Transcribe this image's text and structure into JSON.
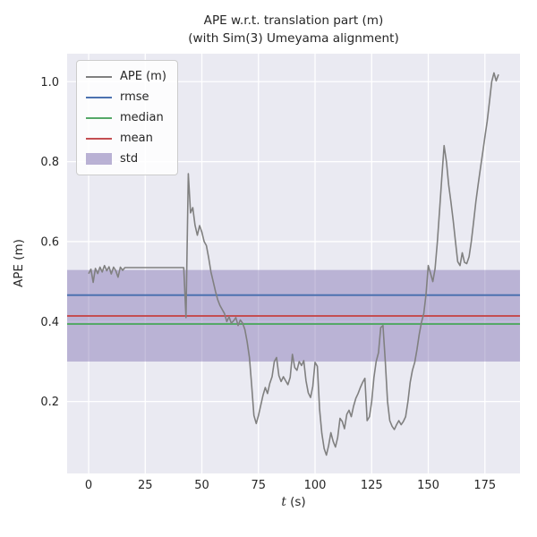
{
  "chart_data": {
    "type": "line",
    "title": "APE w.r.t. translation part (m)",
    "subtitle": "(with Sim(3) Umeyama alignment)",
    "xlabel": "t (s)",
    "ylabel": "APE (m)",
    "xlim": [
      -9.5,
      190.5
    ],
    "ylim": [
      0.02,
      1.07
    ],
    "xticks": [
      0,
      25,
      50,
      75,
      100,
      125,
      150,
      175
    ],
    "yticks": [
      0.2,
      0.4,
      0.6,
      0.8,
      1.0
    ],
    "grid": true,
    "plot_background": "#eaeaf2",
    "gridline_color": "#ffffff",
    "legend_position": "upper left",
    "series": [
      {
        "name": "APE (m)",
        "color": "#808080",
        "points": [
          [
            0,
            0.52
          ],
          [
            1,
            0.531
          ],
          [
            2,
            0.498
          ],
          [
            3,
            0.533
          ],
          [
            4,
            0.52
          ],
          [
            5,
            0.536
          ],
          [
            6,
            0.524
          ],
          [
            7,
            0.54
          ],
          [
            8,
            0.527
          ],
          [
            9,
            0.537
          ],
          [
            10,
            0.519
          ],
          [
            11,
            0.536
          ],
          [
            12,
            0.527
          ],
          [
            13,
            0.511
          ],
          [
            14,
            0.536
          ],
          [
            15,
            0.528
          ],
          [
            16,
            0.535
          ],
          [
            17,
            0.535
          ],
          [
            20,
            0.535
          ],
          [
            25,
            0.535
          ],
          [
            30,
            0.535
          ],
          [
            35,
            0.535
          ],
          [
            40,
            0.535
          ],
          [
            42,
            0.535
          ],
          [
            43,
            0.41
          ],
          [
            44,
            0.77
          ],
          [
            45,
            0.672
          ],
          [
            46,
            0.685
          ],
          [
            47,
            0.641
          ],
          [
            48,
            0.616
          ],
          [
            49,
            0.64
          ],
          [
            50,
            0.624
          ],
          [
            51,
            0.6
          ],
          [
            52,
            0.59
          ],
          [
            53,
            0.56
          ],
          [
            54,
            0.524
          ],
          [
            55,
            0.5
          ],
          [
            56,
            0.476
          ],
          [
            57,
            0.455
          ],
          [
            58,
            0.44
          ],
          [
            59,
            0.43
          ],
          [
            60,
            0.42
          ],
          [
            61,
            0.4
          ],
          [
            62,
            0.412
          ],
          [
            63,
            0.396
          ],
          [
            64,
            0.402
          ],
          [
            65,
            0.41
          ],
          [
            66,
            0.39
          ],
          [
            67,
            0.404
          ],
          [
            68,
            0.396
          ],
          [
            69,
            0.38
          ],
          [
            70,
            0.35
          ],
          [
            71,
            0.31
          ],
          [
            72,
            0.24
          ],
          [
            73,
            0.165
          ],
          [
            74,
            0.145
          ],
          [
            75,
            0.165
          ],
          [
            76,
            0.19
          ],
          [
            77,
            0.215
          ],
          [
            78,
            0.235
          ],
          [
            79,
            0.22
          ],
          [
            80,
            0.245
          ],
          [
            81,
            0.262
          ],
          [
            82,
            0.3
          ],
          [
            83,
            0.31
          ],
          [
            84,
            0.265
          ],
          [
            85,
            0.25
          ],
          [
            86,
            0.262
          ],
          [
            87,
            0.252
          ],
          [
            88,
            0.242
          ],
          [
            89,
            0.26
          ],
          [
            90,
            0.318
          ],
          [
            91,
            0.285
          ],
          [
            92,
            0.278
          ],
          [
            93,
            0.3
          ],
          [
            94,
            0.29
          ],
          [
            95,
            0.302
          ],
          [
            96,
            0.252
          ],
          [
            97,
            0.222
          ],
          [
            98,
            0.21
          ],
          [
            99,
            0.238
          ],
          [
            100,
            0.298
          ],
          [
            101,
            0.288
          ],
          [
            102,
            0.18
          ],
          [
            103,
            0.12
          ],
          [
            104,
            0.082
          ],
          [
            105,
            0.066
          ],
          [
            106,
            0.09
          ],
          [
            107,
            0.122
          ],
          [
            108,
            0.1
          ],
          [
            109,
            0.086
          ],
          [
            110,
            0.11
          ],
          [
            111,
            0.158
          ],
          [
            112,
            0.15
          ],
          [
            113,
            0.132
          ],
          [
            114,
            0.168
          ],
          [
            115,
            0.178
          ],
          [
            116,
            0.162
          ],
          [
            117,
            0.188
          ],
          [
            118,
            0.208
          ],
          [
            119,
            0.22
          ],
          [
            120,
            0.235
          ],
          [
            121,
            0.248
          ],
          [
            122,
            0.258
          ],
          [
            123,
            0.152
          ],
          [
            124,
            0.162
          ],
          [
            125,
            0.2
          ],
          [
            126,
            0.26
          ],
          [
            127,
            0.3
          ],
          [
            128,
            0.322
          ],
          [
            129,
            0.385
          ],
          [
            130,
            0.39
          ],
          [
            131,
            0.3
          ],
          [
            132,
            0.2
          ],
          [
            133,
            0.152
          ],
          [
            134,
            0.138
          ],
          [
            135,
            0.13
          ],
          [
            136,
            0.142
          ],
          [
            137,
            0.152
          ],
          [
            138,
            0.142
          ],
          [
            139,
            0.15
          ],
          [
            140,
            0.162
          ],
          [
            141,
            0.2
          ],
          [
            142,
            0.248
          ],
          [
            143,
            0.278
          ],
          [
            144,
            0.298
          ],
          [
            145,
            0.33
          ],
          [
            146,
            0.368
          ],
          [
            147,
            0.398
          ],
          [
            148,
            0.42
          ],
          [
            149,
            0.468
          ],
          [
            150,
            0.54
          ],
          [
            151,
            0.52
          ],
          [
            152,
            0.5
          ],
          [
            153,
            0.532
          ],
          [
            154,
            0.6
          ],
          [
            155,
            0.68
          ],
          [
            156,
            0.762
          ],
          [
            157,
            0.84
          ],
          [
            158,
            0.8
          ],
          [
            159,
            0.742
          ],
          [
            160,
            0.7
          ],
          [
            161,
            0.652
          ],
          [
            162,
            0.6
          ],
          [
            163,
            0.55
          ],
          [
            164,
            0.54
          ],
          [
            165,
            0.572
          ],
          [
            166,
            0.548
          ],
          [
            167,
            0.545
          ],
          [
            168,
            0.562
          ],
          [
            169,
            0.6
          ],
          [
            170,
            0.648
          ],
          [
            171,
            0.7
          ],
          [
            172,
            0.742
          ],
          [
            173,
            0.782
          ],
          [
            174,
            0.822
          ],
          [
            175,
            0.862
          ],
          [
            176,
            0.9
          ],
          [
            177,
            0.948
          ],
          [
            178,
            1.0
          ],
          [
            179,
            1.022
          ],
          [
            180,
            1.002
          ],
          [
            181,
            1.018
          ]
        ]
      }
    ],
    "stats": {
      "rmse": {
        "value": 0.466,
        "color": "#4C72B0"
      },
      "median": {
        "value": 0.394,
        "color": "#55A868"
      },
      "mean": {
        "value": 0.414,
        "color": "#C44E52"
      },
      "std_band": {
        "low": 0.3,
        "high": 0.529,
        "color": "#8172B2",
        "opacity": 0.45
      }
    },
    "legend": [
      {
        "label": "APE (m)",
        "swatch": "line",
        "color": "#808080"
      },
      {
        "label": "rmse",
        "swatch": "line",
        "color": "#4C72B0"
      },
      {
        "label": "median",
        "swatch": "line",
        "color": "#55A868"
      },
      {
        "label": "mean",
        "swatch": "line",
        "color": "#C44E52"
      },
      {
        "label": "std",
        "swatch": "patch",
        "color": "#8172B2"
      }
    ]
  }
}
